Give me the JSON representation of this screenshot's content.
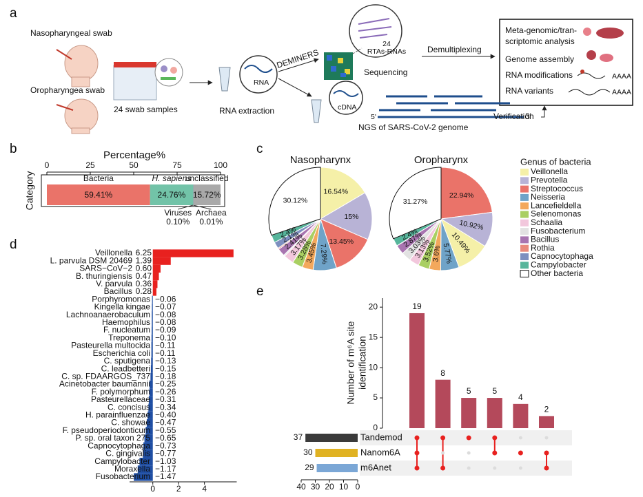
{
  "diagram": {
    "panel": "a",
    "naso": "Nasopharyngeal swab",
    "oro": "Oropharyngea swab",
    "samples": "24 swab samples",
    "rna": "RNA",
    "extraction": "RNA extraction",
    "deminers": "DEMINERS",
    "rtas_num": "24",
    "rtas": "RTAs-RNAs",
    "sequencing": "Sequencing",
    "cdna": "cDNA",
    "five": "5'",
    "three": "3'",
    "ngs": "NGS of SARS-CoV-2 genome",
    "demux": "Demultiplexing",
    "verification": "Verification",
    "out1a": "Meta-genomic/tran-",
    "out1b": "scriptomic analysis",
    "out2": "Genome assembly",
    "out3": "RNA modifications",
    "out4": "RNA variants",
    "polya1": "AAAA",
    "polya2": "AAAA"
  },
  "chart_data": [
    {
      "type": "stacked_bar",
      "panel": "b",
      "title": "Percentage%",
      "ylabel": "Category",
      "xlim": [
        0,
        100
      ],
      "xticks": [
        0,
        25,
        50,
        75,
        100
      ],
      "series": [
        {
          "name": "Bacteria",
          "color": "#ea7369",
          "values": [
            59.41
          ],
          "value_labels": [
            "59.41%"
          ]
        },
        {
          "name": "H. sapiens",
          "color": "#72c3a8",
          "values": [
            24.76
          ],
          "value_labels": [
            "24.76%"
          ]
        },
        {
          "name": "Viruses",
          "color": "#3aa48f",
          "values": [
            0.1
          ],
          "value_labels": [
            "0.10%"
          ]
        },
        {
          "name": "Archaea",
          "color": "#3b9ad0",
          "values": [
            0.01
          ],
          "value_labels": [
            "0.01%"
          ]
        },
        {
          "name": "unclassified",
          "color": "#a9a9a9",
          "values": [
            15.72
          ],
          "value_labels": [
            "15.72%"
          ]
        }
      ]
    },
    {
      "type": "pie",
      "panel": "c",
      "title": "Nasopharynx",
      "legend_title": "Genus of bacteria",
      "categories": [
        "Veillonella",
        "Prevotella",
        "Streptococcus",
        "Neisseria",
        "Lancefieldella",
        "Selenomonas",
        "Schaalia",
        "Fusobacterium",
        "Bacillus",
        "Rothia",
        "Capnocytophaga",
        "Campylobacter",
        "Other bacteria"
      ],
      "values": [
        16.54,
        15,
        13.45,
        7.29,
        3.45,
        3.28,
        3.17,
        0.4,
        2.41,
        0.39,
        2.1,
        2.4,
        30.12
      ],
      "value_labels": [
        "16.54%",
        "15%",
        "13.45%",
        "7.29%",
        "3.45%",
        "3.28%",
        "3.17%",
        null,
        "2.41%",
        null,
        "2.1%",
        "2.4%",
        "30.12%"
      ],
      "colors": [
        "#f5f0a8",
        "#b8b3d6",
        "#ea7369",
        "#6fa3c8",
        "#f3a85c",
        "#a9cf62",
        "#f2c7dc",
        "#e2e2e2",
        "#a874b0",
        "#e98a7c",
        "#7d8fbf",
        "#56b59b",
        "#ffffff"
      ]
    },
    {
      "type": "pie",
      "title": "Oropharynx",
      "categories": [
        "Streptococcus",
        "Prevotella",
        "Veillonella",
        "Neisseria",
        "Lancefieldella",
        "Selenomonas",
        "Schaalia",
        "Fusobacterium",
        "Bacillus",
        "Rothia",
        "Capnocytophaga",
        "Campylobacter",
        "Other bacteria"
      ],
      "values": [
        22.94,
        10.92,
        10.49,
        5.77,
        3.6,
        3.52,
        3.13,
        3.03,
        2.87,
        0.03,
        0.03,
        2.4,
        31.27
      ],
      "value_labels": [
        "22.94%",
        "10.92%",
        "10.49%",
        "5.77%",
        "3.6%",
        "3.52%",
        "3.13%",
        "3.03%",
        "2.87%",
        null,
        null,
        "2.4%",
        "31.27%"
      ],
      "colors": [
        "#ea7369",
        "#b8b3d6",
        "#f5f0a8",
        "#6fa3c8",
        "#f3a85c",
        "#a9cf62",
        "#f2c7dc",
        "#e2e2e2",
        "#a874b0",
        "#e98a7c",
        "#7d8fbf",
        "#56b59b",
        "#ffffff"
      ]
    },
    {
      "type": "hbar",
      "panel": "d",
      "xlim": [
        -1.8,
        6.5
      ],
      "xticks": [
        0,
        2,
        4
      ],
      "positive_color": "#e8211f",
      "negative_color": "#1f4ea3",
      "categories": [
        "Veillonella",
        "L. parvula DSM 20469",
        "SARS−CoV−2",
        "B. thuringiensis",
        "V. parvula",
        "Bacillus",
        "Porphyromonas",
        "Kingella kingae",
        "Lachnoanaerobaculum",
        "Haemophilus",
        "F. nucleatum",
        "Treponema",
        "Pasteurella multocida",
        "Escherichia coli",
        "C. sputigena",
        "C. leadbetteri",
        "C. sp. FDAARGOS_737",
        "Acinetobacter baumannii",
        "F. polymorphum",
        "Pasteurellaceae",
        "C. concisus",
        "H. parainfluenzae",
        "C. showae",
        "F. pseudoperiodonticum",
        "P. sp. oral taxon 275",
        "Capnocytophaga",
        "C. gingivalis",
        "Campylobacter",
        "Moraxella",
        "Fusobacterium"
      ],
      "values": [
        6.25,
        1.39,
        0.6,
        0.47,
        0.36,
        0.28,
        -0.06,
        -0.07,
        -0.08,
        -0.08,
        -0.09,
        -0.1,
        -0.11,
        -0.11,
        -0.13,
        -0.15,
        -0.18,
        -0.25,
        -0.26,
        -0.31,
        -0.34,
        -0.4,
        -0.47,
        -0.55,
        -0.65,
        -0.73,
        -0.77,
        -1.03,
        -1.17,
        -1.47
      ],
      "value_labels": [
        "6.25",
        "1.39",
        "0.60",
        "0.47",
        "0.36",
        "0.28",
        "−0.06",
        "−0.07",
        "−0.08",
        "−0.08",
        "−0.09",
        "−0.10",
        "−0.11",
        "−0.11",
        "−0.13",
        "−0.15",
        "−0.18",
        "−0.25",
        "−0.26",
        "−0.31",
        "−0.34",
        "−0.40",
        "−0.47",
        "−0.55",
        "−0.65",
        "−0.73",
        "−0.77",
        "−1.03",
        "−1.17",
        "−1.47"
      ]
    },
    {
      "type": "upset",
      "panel": "e",
      "ylabel": [
        "Number of m⁶A site",
        "identification"
      ],
      "values": [
        19,
        8,
        5,
        5,
        4,
        2
      ],
      "color": "#b4495b",
      "ylim": [
        0,
        21.5
      ],
      "yticks": [
        0,
        5,
        10,
        15,
        20
      ],
      "sets": {
        "names": [
          "Tandemod",
          "Nanom6A",
          "m6Anet"
        ],
        "values": [
          37,
          30,
          29
        ],
        "colors": [
          "#3b3b3b",
          "#e0b222",
          "#7ba7d6"
        ],
        "xlim": [
          40,
          0
        ],
        "xticks": [
          40,
          30,
          20,
          10,
          0
        ]
      },
      "intersections": [
        [
          true,
          true,
          true
        ],
        [
          true,
          false,
          true
        ],
        [
          true,
          false,
          false
        ],
        [
          true,
          true,
          false
        ],
        [
          false,
          true,
          false
        ],
        [
          false,
          true,
          true
        ]
      ],
      "dot_color": "#e8211f"
    }
  ]
}
